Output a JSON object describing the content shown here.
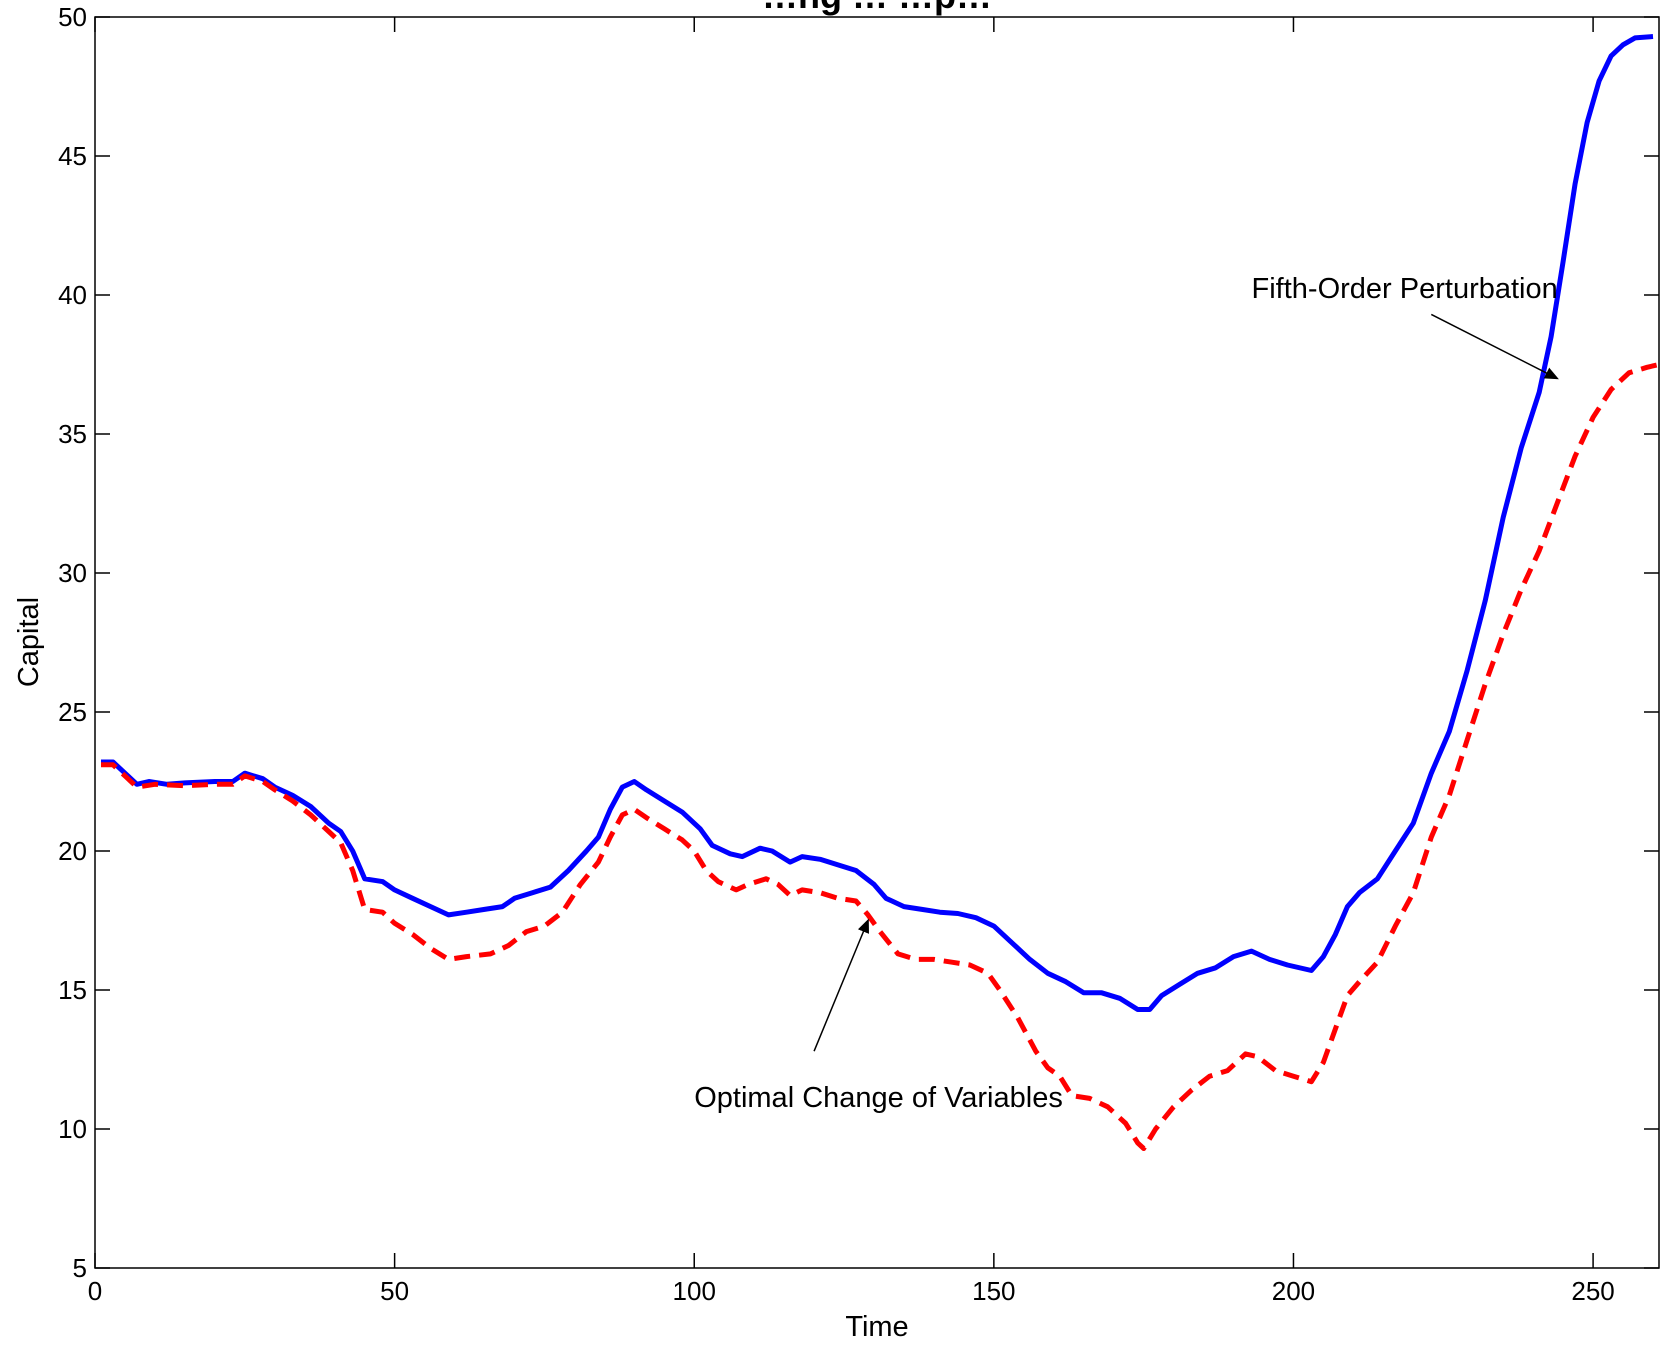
{
  "chart_data": {
    "type": "line",
    "title": "…ng … …p…",
    "xlabel": "Time",
    "ylabel": "Capital",
    "xlim": [
      0,
      261
    ],
    "ylim": [
      5,
      50
    ],
    "xticks": [
      0,
      50,
      100,
      150,
      200,
      250
    ],
    "yticks": [
      5,
      10,
      15,
      20,
      25,
      30,
      35,
      40,
      45,
      50
    ],
    "grid": false,
    "legend": "none",
    "annotations": [
      {
        "text": "Fifth-Order Perturbation",
        "text_x": 193,
        "text_y": 39.9,
        "arrow_to_x": 244,
        "arrow_to_y": 37.0,
        "arrow_from_x": 223,
        "arrow_from_y": 39.3
      },
      {
        "text": "Optimal Change of Variables",
        "text_x": 100,
        "text_y": 10.8,
        "arrow_to_x": 129,
        "arrow_to_y": 17.5,
        "arrow_from_x": 120,
        "arrow_from_y": 12.8
      }
    ],
    "series": [
      {
        "color": "#0000ff",
        "style": "solid",
        "points": [
          [
            1,
            23.2
          ],
          [
            3,
            23.2
          ],
          [
            5,
            22.8
          ],
          [
            7,
            22.4
          ],
          [
            9,
            22.5
          ],
          [
            12,
            22.4
          ],
          [
            15,
            22.45
          ],
          [
            20,
            22.5
          ],
          [
            23,
            22.5
          ],
          [
            25,
            22.8
          ],
          [
            28,
            22.6
          ],
          [
            30,
            22.3
          ],
          [
            33,
            22.0
          ],
          [
            36,
            21.6
          ],
          [
            39,
            21.0
          ],
          [
            41,
            20.7
          ],
          [
            43,
            20.0
          ],
          [
            45,
            19.0
          ],
          [
            48,
            18.9
          ],
          [
            50,
            18.6
          ],
          [
            53,
            18.3
          ],
          [
            56,
            18.0
          ],
          [
            59,
            17.7
          ],
          [
            62,
            17.8
          ],
          [
            65,
            17.9
          ],
          [
            68,
            18.0
          ],
          [
            70,
            18.3
          ],
          [
            73,
            18.5
          ],
          [
            76,
            18.7
          ],
          [
            79,
            19.3
          ],
          [
            82,
            20.0
          ],
          [
            84,
            20.5
          ],
          [
            86,
            21.5
          ],
          [
            88,
            22.3
          ],
          [
            90,
            22.5
          ],
          [
            92,
            22.2
          ],
          [
            95,
            21.8
          ],
          [
            98,
            21.4
          ],
          [
            101,
            20.8
          ],
          [
            103,
            20.2
          ],
          [
            106,
            19.9
          ],
          [
            108,
            19.8
          ],
          [
            111,
            20.1
          ],
          [
            113,
            20.0
          ],
          [
            116,
            19.6
          ],
          [
            118,
            19.8
          ],
          [
            121,
            19.7
          ],
          [
            124,
            19.5
          ],
          [
            127,
            19.3
          ],
          [
            130,
            18.8
          ],
          [
            132,
            18.3
          ],
          [
            135,
            18.0
          ],
          [
            138,
            17.9
          ],
          [
            141,
            17.8
          ],
          [
            144,
            17.75
          ],
          [
            147,
            17.6
          ],
          [
            150,
            17.3
          ],
          [
            153,
            16.7
          ],
          [
            156,
            16.1
          ],
          [
            159,
            15.6
          ],
          [
            162,
            15.3
          ],
          [
            165,
            14.9
          ],
          [
            168,
            14.9
          ],
          [
            171,
            14.7
          ],
          [
            174,
            14.3
          ],
          [
            176,
            14.3
          ],
          [
            178,
            14.8
          ],
          [
            181,
            15.2
          ],
          [
            184,
            15.6
          ],
          [
            187,
            15.8
          ],
          [
            190,
            16.2
          ],
          [
            193,
            16.4
          ],
          [
            196,
            16.1
          ],
          [
            199,
            15.9
          ],
          [
            203,
            15.7
          ],
          [
            205,
            16.2
          ],
          [
            207,
            17.0
          ],
          [
            209,
            18.0
          ],
          [
            211,
            18.5
          ],
          [
            214,
            19.0
          ],
          [
            217,
            20.0
          ],
          [
            220,
            21.0
          ],
          [
            223,
            22.8
          ],
          [
            226,
            24.3
          ],
          [
            229,
            26.5
          ],
          [
            232,
            29.0
          ],
          [
            235,
            32.0
          ],
          [
            238,
            34.5
          ],
          [
            241,
            36.5
          ],
          [
            243,
            38.5
          ],
          [
            245,
            41.2
          ],
          [
            247,
            44.0
          ],
          [
            249,
            46.2
          ],
          [
            251,
            47.7
          ],
          [
            253,
            48.6
          ],
          [
            255,
            49.0
          ],
          [
            257,
            49.25
          ],
          [
            260,
            49.3
          ]
        ]
      },
      {
        "color": "#ff0000",
        "style": "dashed",
        "points": [
          [
            1,
            23.1
          ],
          [
            3,
            23.1
          ],
          [
            5,
            22.7
          ],
          [
            7,
            22.3
          ],
          [
            10,
            22.4
          ],
          [
            15,
            22.35
          ],
          [
            20,
            22.4
          ],
          [
            23,
            22.4
          ],
          [
            25,
            22.7
          ],
          [
            28,
            22.5
          ],
          [
            30,
            22.2
          ],
          [
            33,
            21.8
          ],
          [
            36,
            21.3
          ],
          [
            39,
            20.7
          ],
          [
            41,
            20.3
          ],
          [
            43,
            19.3
          ],
          [
            45,
            17.9
          ],
          [
            48,
            17.8
          ],
          [
            50,
            17.4
          ],
          [
            53,
            17.0
          ],
          [
            56,
            16.5
          ],
          [
            59,
            16.1
          ],
          [
            62,
            16.2
          ],
          [
            66,
            16.3
          ],
          [
            69,
            16.6
          ],
          [
            72,
            17.1
          ],
          [
            75,
            17.3
          ],
          [
            78,
            17.8
          ],
          [
            81,
            18.8
          ],
          [
            84,
            19.6
          ],
          [
            86,
            20.5
          ],
          [
            88,
            21.3
          ],
          [
            90,
            21.5
          ],
          [
            92,
            21.2
          ],
          [
            95,
            20.8
          ],
          [
            98,
            20.4
          ],
          [
            100,
            20.0
          ],
          [
            102,
            19.3
          ],
          [
            104,
            18.9
          ],
          [
            107,
            18.6
          ],
          [
            109,
            18.8
          ],
          [
            112,
            19.0
          ],
          [
            114,
            18.8
          ],
          [
            116,
            18.4
          ],
          [
            118,
            18.6
          ],
          [
            121,
            18.5
          ],
          [
            124,
            18.3
          ],
          [
            127,
            18.2
          ],
          [
            129,
            17.7
          ],
          [
            131,
            17.1
          ],
          [
            134,
            16.3
          ],
          [
            137,
            16.1
          ],
          [
            140,
            16.1
          ],
          [
            143,
            16.0
          ],
          [
            146,
            15.9
          ],
          [
            149,
            15.6
          ],
          [
            151,
            15.0
          ],
          [
            154,
            14.0
          ],
          [
            157,
            12.8
          ],
          [
            159,
            12.2
          ],
          [
            161,
            11.9
          ],
          [
            163,
            11.2
          ],
          [
            166,
            11.1
          ],
          [
            169,
            10.8
          ],
          [
            172,
            10.2
          ],
          [
            174,
            9.5
          ],
          [
            175,
            9.3
          ],
          [
            177,
            10.0
          ],
          [
            180,
            10.8
          ],
          [
            183,
            11.4
          ],
          [
            186,
            11.9
          ],
          [
            189,
            12.1
          ],
          [
            192,
            12.7
          ],
          [
            194,
            12.6
          ],
          [
            197,
            12.1
          ],
          [
            200,
            11.9
          ],
          [
            203,
            11.7
          ],
          [
            205,
            12.4
          ],
          [
            207,
            13.6
          ],
          [
            209,
            14.8
          ],
          [
            211,
            15.3
          ],
          [
            214,
            16.0
          ],
          [
            217,
            17.3
          ],
          [
            220,
            18.5
          ],
          [
            223,
            20.5
          ],
          [
            226,
            22.0
          ],
          [
            229,
            24.0
          ],
          [
            232,
            26.0
          ],
          [
            235,
            27.8
          ],
          [
            238,
            29.4
          ],
          [
            241,
            30.8
          ],
          [
            244,
            32.5
          ],
          [
            247,
            34.2
          ],
          [
            250,
            35.6
          ],
          [
            253,
            36.6
          ],
          [
            256,
            37.2
          ],
          [
            259,
            37.4
          ],
          [
            261,
            37.5
          ]
        ]
      }
    ]
  }
}
